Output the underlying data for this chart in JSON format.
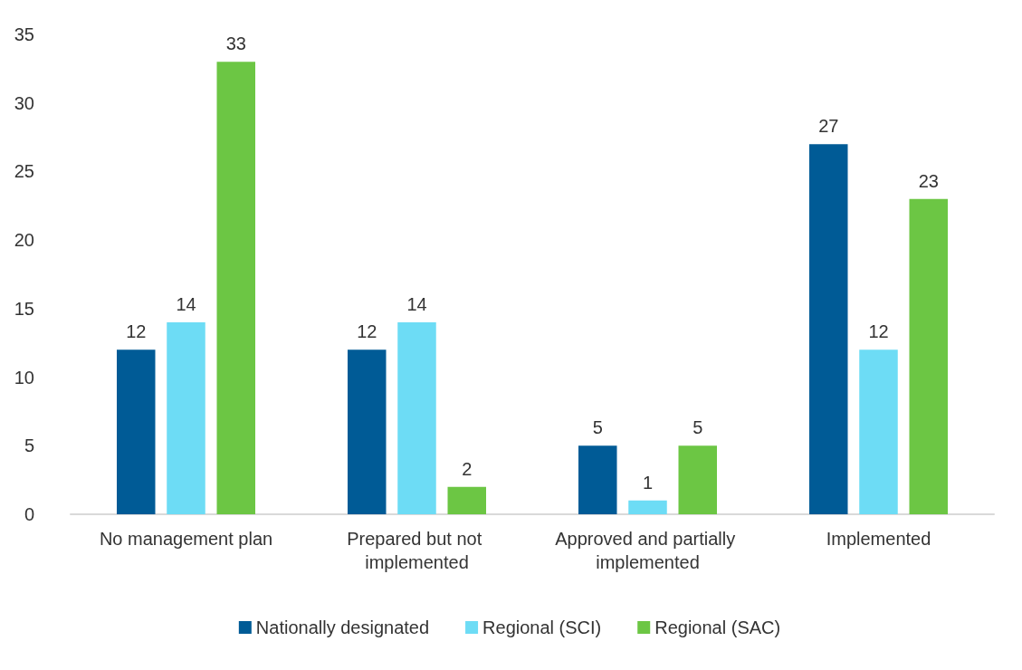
{
  "chart_data": {
    "type": "bar",
    "categories": [
      "No management plan",
      "Prepared but not implemented",
      "Approved and partially implemented",
      "Implemented"
    ],
    "series": [
      {
        "name": "Nationally designated",
        "color": "#005b96",
        "values": [
          12,
          12,
          5,
          27
        ]
      },
      {
        "name": "Regional (SCI)",
        "color": "#6ddcf5",
        "values": [
          14,
          14,
          1,
          12
        ]
      },
      {
        "name": "Regional (SAC)",
        "color": "#6cc644",
        "values": [
          33,
          2,
          5,
          23
        ]
      }
    ],
    "ylim": [
      0,
      35
    ],
    "yticks": [
      0,
      5,
      10,
      15,
      20,
      25,
      30,
      35
    ],
    "grid": false,
    "legend": "bottom",
    "data_labels": true
  }
}
